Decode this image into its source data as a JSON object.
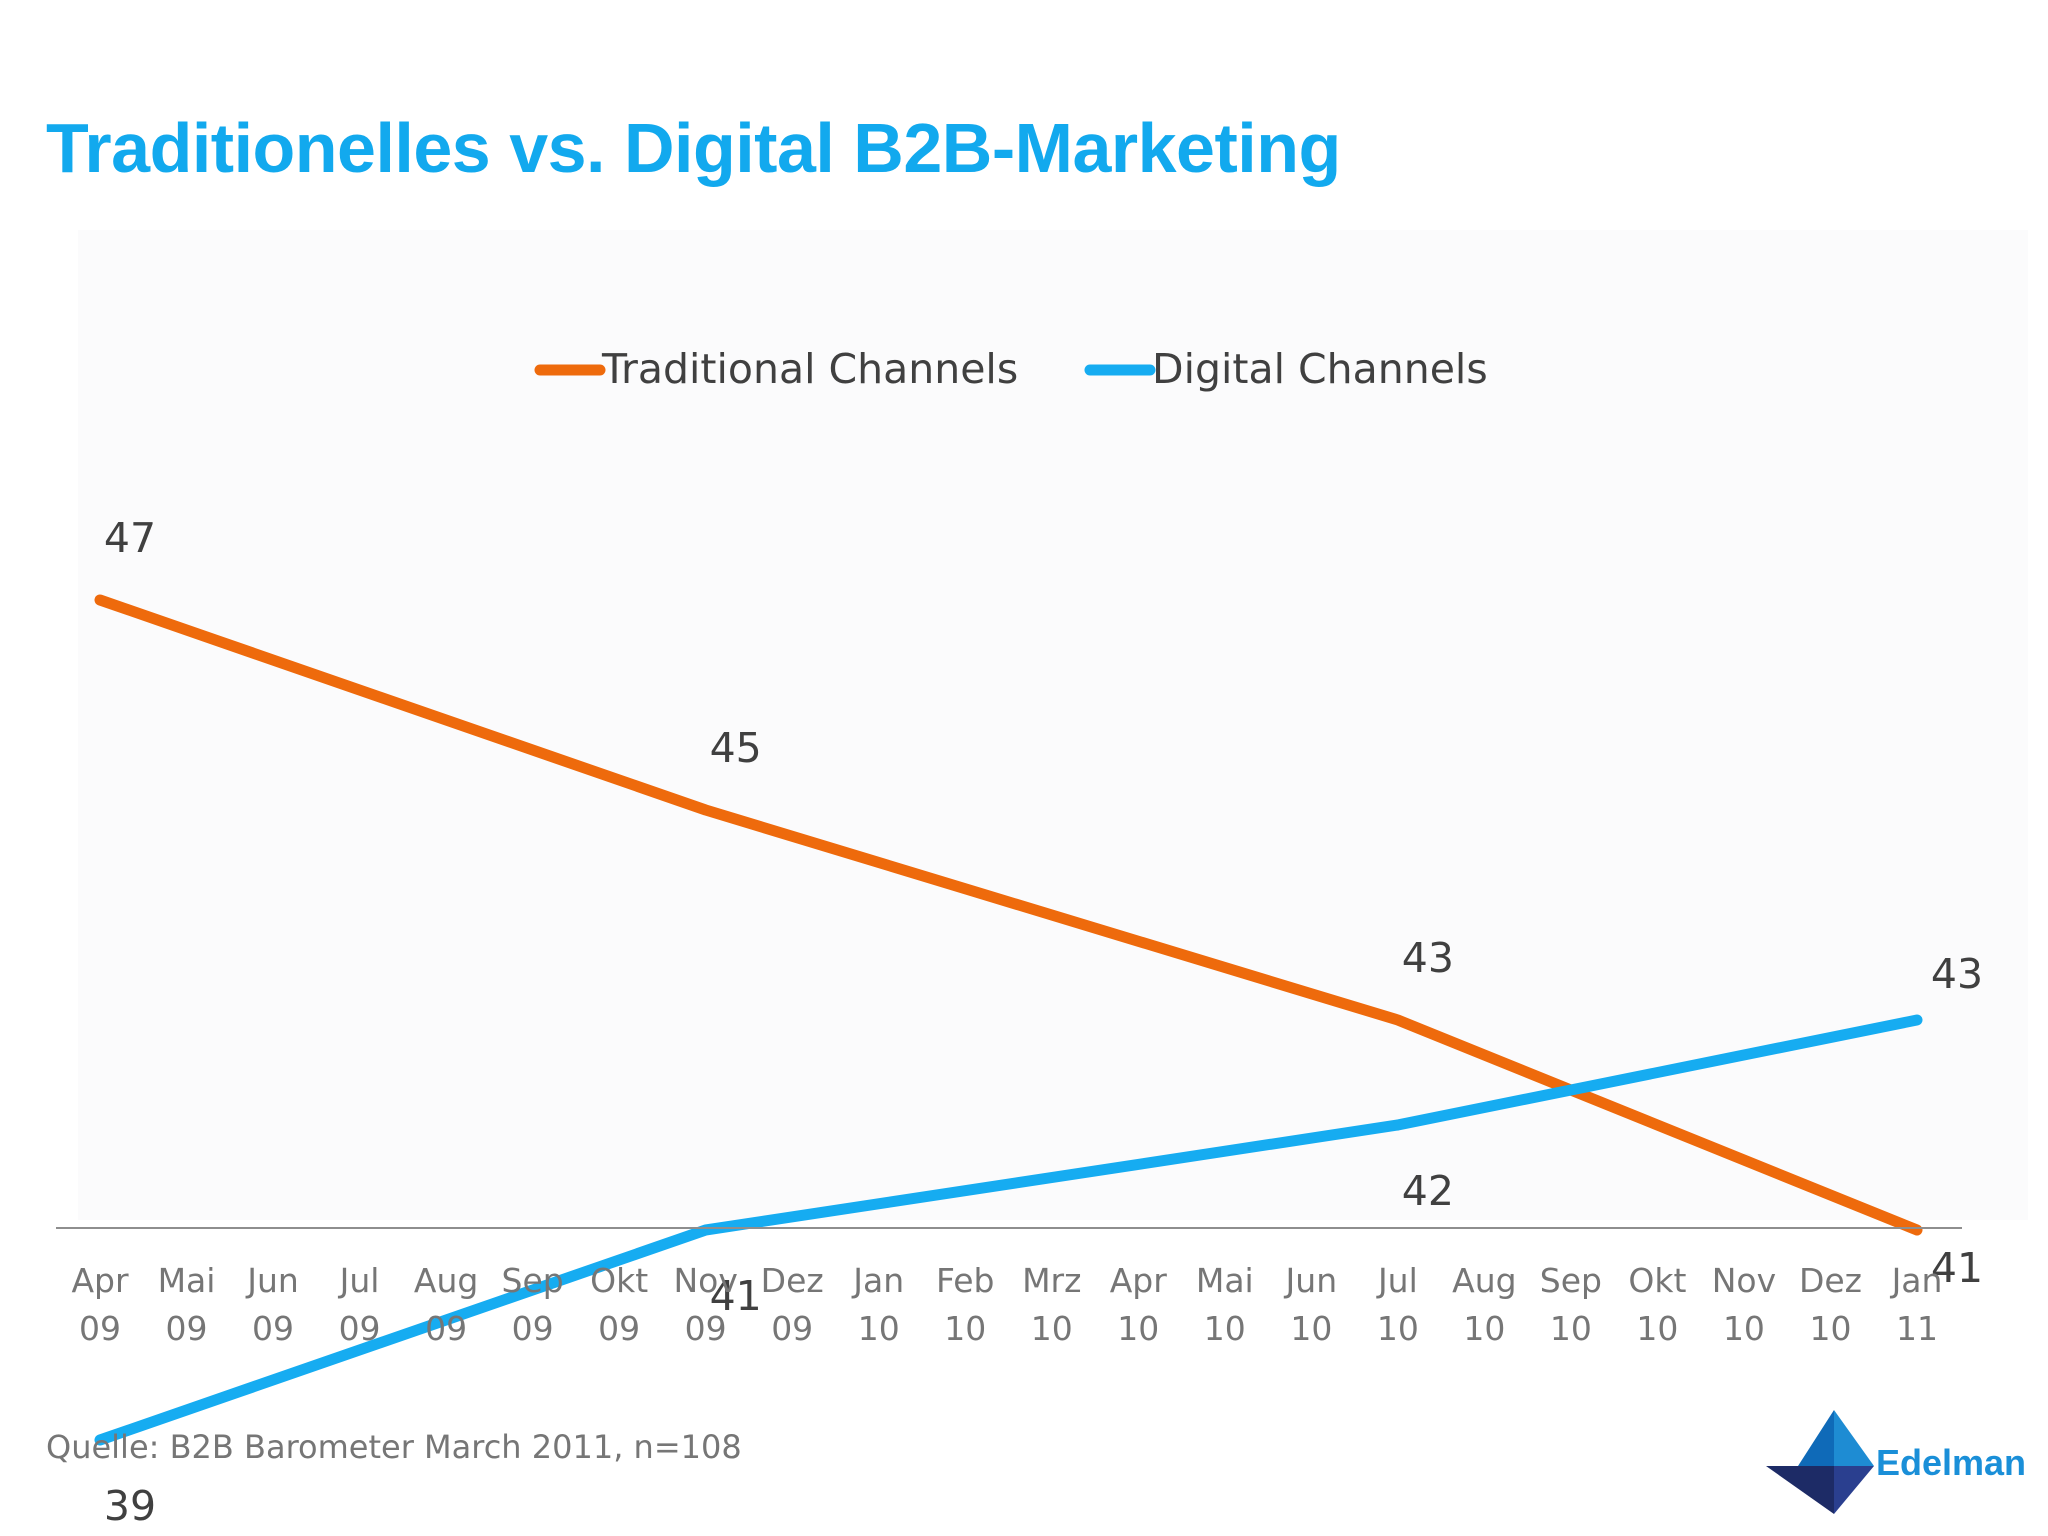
{
  "title": "Traditionelles vs. Digital B2B-Marketing",
  "source": "Quelle: B2B Barometer March 2011, n=108",
  "brand": "Edelman",
  "colors": {
    "title": "#12a9ee",
    "traditional": "#ee6a0c",
    "digital": "#16acf1",
    "axis_text": "#767676",
    "data_label": "#404040"
  },
  "chart_data": {
    "type": "line",
    "categories": [
      [
        "Apr",
        "09"
      ],
      [
        "Mai",
        "09"
      ],
      [
        "Jun",
        "09"
      ],
      [
        "Jul",
        "09"
      ],
      [
        "Aug",
        "09"
      ],
      [
        "Sep",
        "09"
      ],
      [
        "Okt",
        "09"
      ],
      [
        "Nov",
        "09"
      ],
      [
        "Dez",
        "09"
      ],
      [
        "Jan",
        "10"
      ],
      [
        "Feb",
        "10"
      ],
      [
        "Mrz",
        "10"
      ],
      [
        "Apr",
        "10"
      ],
      [
        "Mai",
        "10"
      ],
      [
        "Jun",
        "10"
      ],
      [
        "Jul",
        "10"
      ],
      [
        "Aug",
        "10"
      ],
      [
        "Sep",
        "10"
      ],
      [
        "Okt",
        "10"
      ],
      [
        "Nov",
        "10"
      ],
      [
        "Dez",
        "10"
      ],
      [
        "Jan",
        "11"
      ]
    ],
    "series": [
      {
        "name": "Traditional Channels",
        "color": "#ee6a0c",
        "points": [
          {
            "category": "Apr 09",
            "value": 47
          },
          {
            "category": "Nov 09",
            "value": 45
          },
          {
            "category": "Jul 10",
            "value": 43
          },
          {
            "category": "Jan 11",
            "value": 41
          }
        ]
      },
      {
        "name": "Digital Channels",
        "color": "#16acf1",
        "points": [
          {
            "category": "Apr 09",
            "value": 39
          },
          {
            "category": "Nov 09",
            "value": 41
          },
          {
            "category": "Jul 10",
            "value": 42
          },
          {
            "category": "Jan 11",
            "value": 43
          }
        ]
      }
    ],
    "legend_position": "top",
    "grid": false
  }
}
